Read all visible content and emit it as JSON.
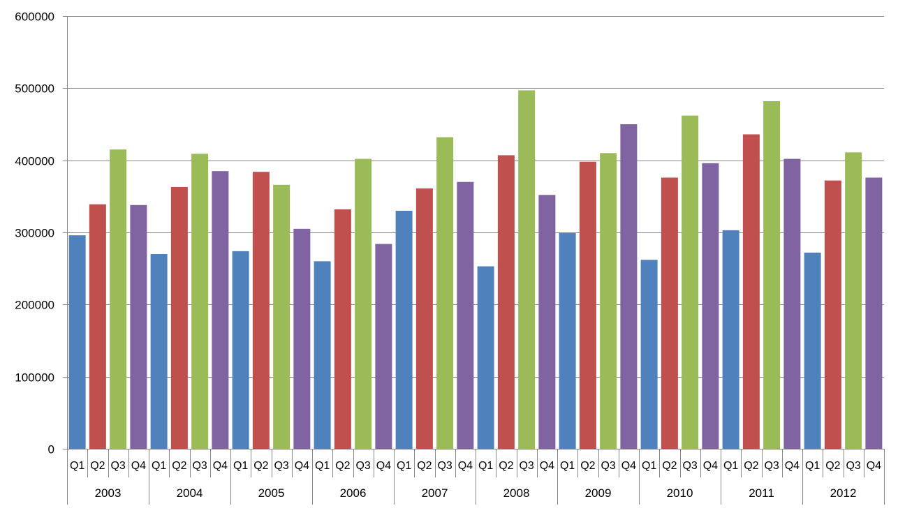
{
  "chart_data": {
    "type": "bar",
    "title": "",
    "xlabel": "",
    "ylabel": "",
    "ylim": [
      0,
      600000
    ],
    "yticks": [
      0,
      100000,
      200000,
      300000,
      400000,
      500000,
      600000
    ],
    "grid": true,
    "legend": "none",
    "quarters": [
      "Q1",
      "Q2",
      "Q3",
      "Q4"
    ],
    "quarter_colors": [
      "#4f81bd",
      "#c0504d",
      "#9bbb59",
      "#8064a2"
    ],
    "years": [
      {
        "year": "2003",
        "values": [
          296000,
          339000,
          415000,
          338000
        ]
      },
      {
        "year": "2004",
        "values": [
          270000,
          363000,
          409000,
          385000
        ]
      },
      {
        "year": "2005",
        "values": [
          274000,
          384000,
          366000,
          305000
        ]
      },
      {
        "year": "2006",
        "values": [
          260000,
          332000,
          402000,
          284000
        ]
      },
      {
        "year": "2007",
        "values": [
          330000,
          361000,
          432000,
          370000
        ]
      },
      {
        "year": "2008",
        "values": [
          253000,
          407000,
          497000,
          352000
        ]
      },
      {
        "year": "2009",
        "values": [
          299000,
          398000,
          410000,
          450000
        ]
      },
      {
        "year": "2010",
        "values": [
          262000,
          376000,
          462000,
          396000
        ]
      },
      {
        "year": "2011",
        "values": [
          303000,
          436000,
          482000,
          402000
        ]
      },
      {
        "year": "2012",
        "values": [
          272000,
          372000,
          411000,
          376000
        ]
      }
    ]
  }
}
